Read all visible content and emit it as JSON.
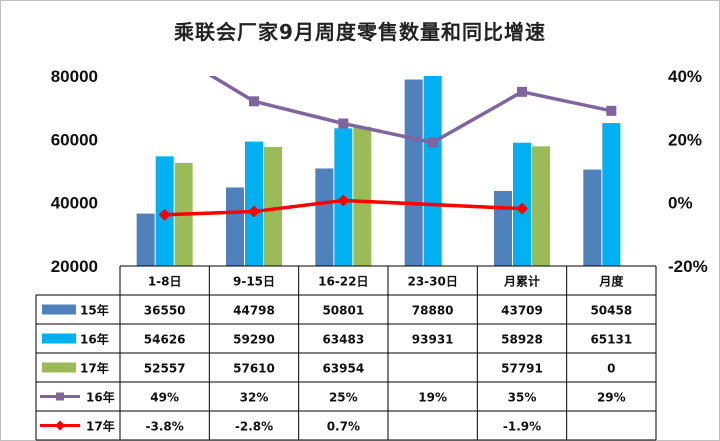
{
  "chart_data": {
    "type": "bar",
    "title": "乘联会厂家9月周度零售数量和同比增速",
    "categories": [
      "1-8日",
      "9-15日",
      "16-22日",
      "23-30日",
      "月累计",
      "月度"
    ],
    "y_left": {
      "ticks": [
        "80000",
        "60000",
        "40000",
        "20000"
      ],
      "ylim": [
        20000,
        80000
      ]
    },
    "y_right": {
      "ticks": [
        "40%",
        "20%",
        "0%",
        "-20%"
      ],
      "ylim": [
        -20,
        40
      ]
    },
    "bar_series": [
      {
        "name": "15年",
        "color": "#4f81bd",
        "values": [
          36550,
          44798,
          50801,
          78880,
          43709,
          50458
        ],
        "labels": [
          "36550",
          "44798",
          "50801",
          "78880",
          "43709",
          "50458"
        ]
      },
      {
        "name": "16年",
        "color": "#00b0f0",
        "values": [
          54626,
          59290,
          63483,
          93931,
          58928,
          65131
        ],
        "labels": [
          "54626",
          "59290",
          "63483",
          "93931",
          "58928",
          "65131"
        ]
      },
      {
        "name": "17年",
        "color": "#9bbb59",
        "values": [
          52557,
          57610,
          63954,
          null,
          57791,
          0
        ],
        "labels": [
          "52557",
          "57610",
          "63954",
          "",
          "57791",
          "0"
        ]
      }
    ],
    "line_series": [
      {
        "name": "16年",
        "color": "#8064a2",
        "marker": "square",
        "values": [
          49,
          32,
          25,
          19,
          35,
          29
        ],
        "labels": [
          "49%",
          "32%",
          "25%",
          "19%",
          "35%",
          "29%"
        ]
      },
      {
        "name": "17年",
        "color": "#ff0000",
        "marker": "diamond",
        "values": [
          -3.8,
          -2.8,
          0.7,
          null,
          -1.9,
          null
        ],
        "labels": [
          "-3.8%",
          "-2.8%",
          "0.7%",
          "",
          "-1.9%",
          ""
        ]
      }
    ],
    "grid": false,
    "legend": "table-bottom"
  }
}
